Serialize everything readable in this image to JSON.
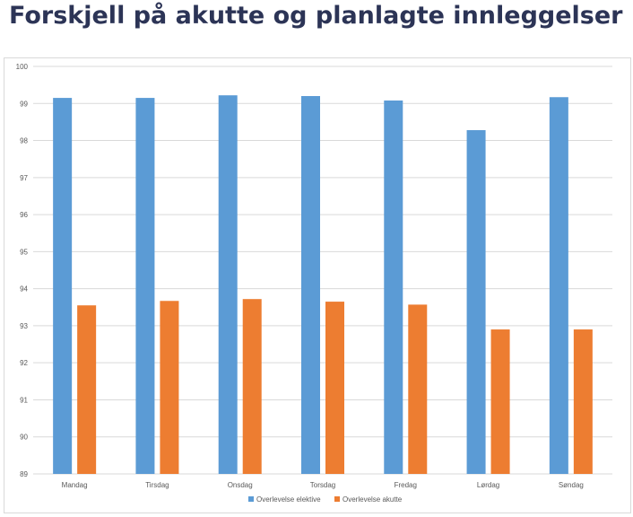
{
  "page": {
    "title": "Forskjell på akutte og planlagte innleggelser"
  },
  "colors": {
    "series1": "#5b9bd5",
    "series2": "#ed7d31",
    "grid": "#d9d9d9",
    "title": "#2c3456"
  },
  "chart_data": {
    "type": "bar",
    "title": "",
    "xlabel": "",
    "ylabel": "",
    "ylim": [
      89,
      100
    ],
    "yticks": [
      89,
      90,
      91,
      92,
      93,
      94,
      95,
      96,
      97,
      98,
      99,
      100
    ],
    "grid": true,
    "legend_position": "bottom",
    "categories": [
      "Mandag",
      "Tirsdag",
      "Onsdag",
      "Torsdag",
      "Fredag",
      "Lørdag",
      "Søndag"
    ],
    "series": [
      {
        "name": "Overlevelse elektive",
        "values": [
          99.15,
          99.15,
          99.22,
          99.2,
          99.08,
          98.28,
          99.17
        ]
      },
      {
        "name": "Overlevelse akutte",
        "values": [
          93.55,
          93.67,
          93.72,
          93.65,
          93.57,
          92.9,
          92.9
        ]
      }
    ]
  }
}
